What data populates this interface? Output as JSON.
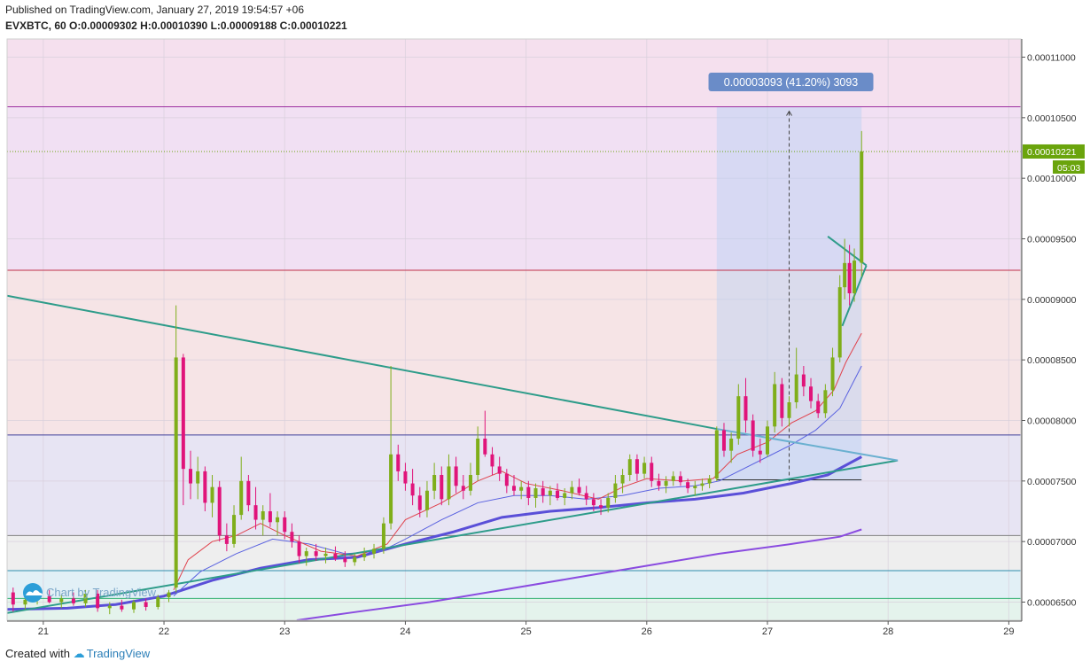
{
  "header": {
    "published": "Published on TradingView.com, January 27, 2019 19:54:57 +06",
    "symbol": "EVXBTC, 60",
    "o_label": "O:",
    "o_value": "0.00009302",
    "h_label": "H:",
    "h_value": "0.00010390",
    "l_label": "L:",
    "l_value": "0.00009188",
    "c_label": "C:",
    "c_value": "0.00010221"
  },
  "footer": {
    "created": "Created with",
    "brand": "TradingView"
  },
  "watermark": "Chart by TradingView",
  "colors": {
    "up": "#7fae1a",
    "down": "#e0147a",
    "ema_fast": "#e0424c",
    "ema_slow": "#5a62e0",
    "ma_thick": "#5a4fd8",
    "ma_long": "#8a4be0",
    "trend": "#2e9c8a",
    "price_tag": "#6aa40c",
    "measure": "#6a8cc8"
  },
  "chart_data": {
    "type": "candlestick",
    "x_ticks": [
      "21",
      "22",
      "23",
      "24",
      "25",
      "26",
      "27",
      "28",
      "29"
    ],
    "y_ticks": [
      "0.00006500",
      "0.00007000",
      "0.00007500",
      "0.00008000",
      "0.00008500",
      "0.00009000",
      "0.00009500",
      "0.00010000",
      "0.00010500",
      "0.00011000"
    ],
    "y_range": [
      6.35e-05,
      0.0001115
    ],
    "x_range": [
      20.7,
      29.1
    ],
    "last_price": "0.00010221",
    "countdown": "05:03",
    "measure_label": "0.00003093 (41.20%) 3093",
    "measure_from": [
      26.58,
      7.5e-05
    ],
    "measure_to": [
      27.78,
      0.0001059
    ],
    "horizontal_levels": [
      {
        "price": 0.0001059,
        "color": "#9c2fa0"
      },
      {
        "price": 9.24e-05,
        "color": "#c0304a"
      },
      {
        "price": 7.88e-05,
        "color": "#40409a"
      },
      {
        "price": 7.05e-05,
        "color": "#808080"
      },
      {
        "price": 6.76e-05,
        "color": "#2f8fb0"
      },
      {
        "price": 6.53e-05,
        "color": "#2fb070"
      }
    ],
    "zones": [
      {
        "from": 0.0001059,
        "to": 0.0001115,
        "color": "#f5e0ee"
      },
      {
        "from": 9.24e-05,
        "to": 0.0001059,
        "color": "#f1e0f3"
      },
      {
        "from": 7.88e-05,
        "to": 9.24e-05,
        "color": "#f6e4e6"
      },
      {
        "from": 7.05e-05,
        "to": 7.88e-05,
        "color": "#e7e4f3"
      },
      {
        "from": 6.76e-05,
        "to": 7.05e-05,
        "color": "#eeeeee"
      },
      {
        "from": 6.53e-05,
        "to": 6.76e-05,
        "color": "#e2f0f6"
      },
      {
        "from": 6.35e-05,
        "to": 6.53e-05,
        "color": "#e4f3ec"
      }
    ],
    "trendlines": [
      {
        "from": [
          20.7,
          9.03e-05
        ],
        "to": [
          26.58,
          7.93e-05
        ]
      },
      {
        "from": [
          20.7,
          6.41e-05
        ],
        "to": [
          28.08,
          7.67e-05
        ]
      },
      {
        "from": [
          26.58,
          7.93e-05
        ],
        "to": [
          28.08,
          7.67e-05
        ],
        "color": "#6ab0d0"
      },
      {
        "from": [
          27.5,
          9.52e-05
        ],
        "to": [
          27.82,
          9.28e-05
        ]
      },
      {
        "from": [
          27.82,
          9.28e-05
        ],
        "to": [
          27.62,
          8.78e-05
        ]
      }
    ],
    "support_line": {
      "from": [
        26.58,
        7.51e-05
      ],
      "to": [
        27.78,
        7.51e-05
      ]
    },
    "candles": [
      {
        "t": 20.75,
        "o": 6.58,
        "h": 6.62,
        "l": 6.42,
        "c": 6.48
      },
      {
        "t": 20.85,
        "o": 6.48,
        "h": 6.56,
        "l": 6.44,
        "c": 6.52
      },
      {
        "t": 20.95,
        "o": 6.52,
        "h": 6.6,
        "l": 6.48,
        "c": 6.55
      },
      {
        "t": 21.05,
        "o": 6.55,
        "h": 6.6,
        "l": 6.49,
        "c": 6.5
      },
      {
        "t": 21.15,
        "o": 6.5,
        "h": 6.56,
        "l": 6.45,
        "c": 6.53
      },
      {
        "t": 21.25,
        "o": 6.53,
        "h": 6.58,
        "l": 6.47,
        "c": 6.49
      },
      {
        "t": 21.35,
        "o": 6.49,
        "h": 6.6,
        "l": 6.46,
        "c": 6.57
      },
      {
        "t": 21.45,
        "o": 6.57,
        "h": 6.6,
        "l": 6.42,
        "c": 6.45
      },
      {
        "t": 21.55,
        "o": 6.45,
        "h": 6.5,
        "l": 6.4,
        "c": 6.47
      },
      {
        "t": 21.65,
        "o": 6.47,
        "h": 6.52,
        "l": 6.42,
        "c": 6.44
      },
      {
        "t": 21.75,
        "o": 6.44,
        "h": 6.52,
        "l": 6.41,
        "c": 6.5
      },
      {
        "t": 21.85,
        "o": 6.5,
        "h": 6.53,
        "l": 6.43,
        "c": 6.46
      },
      {
        "t": 21.95,
        "o": 6.46,
        "h": 6.56,
        "l": 6.44,
        "c": 6.54
      },
      {
        "t": 22.04,
        "o": 6.54,
        "h": 6.6,
        "l": 6.5,
        "c": 6.58
      },
      {
        "t": 22.1,
        "o": 6.62,
        "h": 8.95,
        "l": 6.58,
        "c": 8.52
      },
      {
        "t": 22.16,
        "o": 8.52,
        "h": 8.55,
        "l": 7.3,
        "c": 7.6
      },
      {
        "t": 22.22,
        "o": 7.6,
        "h": 7.75,
        "l": 7.35,
        "c": 7.48
      },
      {
        "t": 22.28,
        "o": 7.48,
        "h": 7.7,
        "l": 7.35,
        "c": 7.58
      },
      {
        "t": 22.34,
        "o": 7.58,
        "h": 7.62,
        "l": 7.25,
        "c": 7.32
      },
      {
        "t": 22.4,
        "o": 7.32,
        "h": 7.55,
        "l": 7.2,
        "c": 7.45
      },
      {
        "t": 22.46,
        "o": 7.45,
        "h": 7.5,
        "l": 7.0,
        "c": 7.05
      },
      {
        "t": 22.52,
        "o": 7.05,
        "h": 7.15,
        "l": 6.92,
        "c": 6.98
      },
      {
        "t": 22.58,
        "o": 6.98,
        "h": 7.3,
        "l": 6.95,
        "c": 7.22
      },
      {
        "t": 22.64,
        "o": 7.22,
        "h": 7.7,
        "l": 7.18,
        "c": 7.5
      },
      {
        "t": 22.7,
        "o": 7.5,
        "h": 7.55,
        "l": 7.25,
        "c": 7.3
      },
      {
        "t": 22.76,
        "o": 7.3,
        "h": 7.45,
        "l": 7.1,
        "c": 7.18
      },
      {
        "t": 22.82,
        "o": 7.18,
        "h": 7.3,
        "l": 7.05,
        "c": 7.25
      },
      {
        "t": 22.88,
        "o": 7.25,
        "h": 7.4,
        "l": 7.12,
        "c": 7.16
      },
      {
        "t": 22.94,
        "o": 7.16,
        "h": 7.25,
        "l": 7.05,
        "c": 7.2
      },
      {
        "t": 23.0,
        "o": 7.2,
        "h": 7.25,
        "l": 7.02,
        "c": 7.08
      },
      {
        "t": 23.06,
        "o": 7.08,
        "h": 7.15,
        "l": 6.95,
        "c": 7.0
      },
      {
        "t": 23.12,
        "o": 7.0,
        "h": 7.05,
        "l": 6.82,
        "c": 6.88
      },
      {
        "t": 23.18,
        "o": 6.88,
        "h": 6.95,
        "l": 6.8,
        "c": 6.92
      },
      {
        "t": 23.26,
        "o": 6.92,
        "h": 6.98,
        "l": 6.84,
        "c": 6.88
      },
      {
        "t": 23.34,
        "o": 6.88,
        "h": 6.95,
        "l": 6.82,
        "c": 6.9
      },
      {
        "t": 23.42,
        "o": 6.9,
        "h": 6.96,
        "l": 6.84,
        "c": 6.86
      },
      {
        "t": 23.5,
        "o": 6.86,
        "h": 6.92,
        "l": 6.79,
        "c": 6.83
      },
      {
        "t": 23.58,
        "o": 6.83,
        "h": 6.9,
        "l": 6.8,
        "c": 6.87
      },
      {
        "t": 23.66,
        "o": 6.87,
        "h": 6.95,
        "l": 6.84,
        "c": 6.9
      },
      {
        "t": 23.74,
        "o": 6.9,
        "h": 6.98,
        "l": 6.86,
        "c": 6.94
      },
      {
        "t": 23.82,
        "o": 6.94,
        "h": 7.2,
        "l": 6.9,
        "c": 7.15
      },
      {
        "t": 23.88,
        "o": 7.15,
        "h": 8.45,
        "l": 7.1,
        "c": 7.72
      },
      {
        "t": 23.94,
        "o": 7.72,
        "h": 7.8,
        "l": 7.5,
        "c": 7.58
      },
      {
        "t": 24.0,
        "o": 7.58,
        "h": 7.65,
        "l": 7.42,
        "c": 7.48
      },
      {
        "t": 24.06,
        "o": 7.48,
        "h": 7.6,
        "l": 7.3,
        "c": 7.38
      },
      {
        "t": 24.12,
        "o": 7.38,
        "h": 7.45,
        "l": 7.2,
        "c": 7.26
      },
      {
        "t": 24.18,
        "o": 7.26,
        "h": 7.5,
        "l": 7.2,
        "c": 7.42
      },
      {
        "t": 24.24,
        "o": 7.42,
        "h": 7.65,
        "l": 7.35,
        "c": 7.55
      },
      {
        "t": 24.3,
        "o": 7.55,
        "h": 7.62,
        "l": 7.3,
        "c": 7.35
      },
      {
        "t": 24.36,
        "o": 7.35,
        "h": 7.72,
        "l": 7.3,
        "c": 7.62
      },
      {
        "t": 24.42,
        "o": 7.62,
        "h": 7.7,
        "l": 7.4,
        "c": 7.46
      },
      {
        "t": 24.48,
        "o": 7.46,
        "h": 7.55,
        "l": 7.35,
        "c": 7.42
      },
      {
        "t": 24.54,
        "o": 7.42,
        "h": 7.65,
        "l": 7.38,
        "c": 7.55
      },
      {
        "t": 24.6,
        "o": 7.55,
        "h": 7.95,
        "l": 7.5,
        "c": 7.85
      },
      {
        "t": 24.66,
        "o": 7.85,
        "h": 8.08,
        "l": 7.7,
        "c": 7.72
      },
      {
        "t": 24.72,
        "o": 7.72,
        "h": 7.78,
        "l": 7.55,
        "c": 7.62
      },
      {
        "t": 24.78,
        "o": 7.62,
        "h": 7.7,
        "l": 7.5,
        "c": 7.56
      },
      {
        "t": 24.84,
        "o": 7.56,
        "h": 7.6,
        "l": 7.4,
        "c": 7.46
      },
      {
        "t": 24.9,
        "o": 7.46,
        "h": 7.55,
        "l": 7.38,
        "c": 7.42
      },
      {
        "t": 24.96,
        "o": 7.42,
        "h": 7.5,
        "l": 7.35,
        "c": 7.45
      },
      {
        "t": 25.02,
        "o": 7.45,
        "h": 7.5,
        "l": 7.3,
        "c": 7.36
      },
      {
        "t": 25.08,
        "o": 7.36,
        "h": 7.48,
        "l": 7.28,
        "c": 7.44
      },
      {
        "t": 25.14,
        "o": 7.44,
        "h": 7.5,
        "l": 7.32,
        "c": 7.38
      },
      {
        "t": 25.2,
        "o": 7.38,
        "h": 7.46,
        "l": 7.3,
        "c": 7.42
      },
      {
        "t": 25.26,
        "o": 7.42,
        "h": 7.48,
        "l": 7.34,
        "c": 7.36
      },
      {
        "t": 25.32,
        "o": 7.36,
        "h": 7.44,
        "l": 7.3,
        "c": 7.4
      },
      {
        "t": 25.38,
        "o": 7.4,
        "h": 7.5,
        "l": 7.35,
        "c": 7.45
      },
      {
        "t": 25.44,
        "o": 7.45,
        "h": 7.52,
        "l": 7.38,
        "c": 7.4
      },
      {
        "t": 25.5,
        "o": 7.4,
        "h": 7.46,
        "l": 7.3,
        "c": 7.35
      },
      {
        "t": 25.56,
        "o": 7.35,
        "h": 7.4,
        "l": 7.25,
        "c": 7.3
      },
      {
        "t": 25.62,
        "o": 7.3,
        "h": 7.35,
        "l": 7.22,
        "c": 7.28
      },
      {
        "t": 25.68,
        "o": 7.28,
        "h": 7.4,
        "l": 7.24,
        "c": 7.36
      },
      {
        "t": 25.74,
        "o": 7.36,
        "h": 7.55,
        "l": 7.32,
        "c": 7.48
      },
      {
        "t": 25.8,
        "o": 7.48,
        "h": 7.6,
        "l": 7.4,
        "c": 7.55
      },
      {
        "t": 25.86,
        "o": 7.55,
        "h": 7.72,
        "l": 7.5,
        "c": 7.68
      },
      {
        "t": 25.92,
        "o": 7.68,
        "h": 7.72,
        "l": 7.5,
        "c": 7.56
      },
      {
        "t": 25.98,
        "o": 7.56,
        "h": 7.7,
        "l": 7.52,
        "c": 7.65
      },
      {
        "t": 26.04,
        "o": 7.65,
        "h": 7.7,
        "l": 7.45,
        "c": 7.5
      },
      {
        "t": 26.1,
        "o": 7.5,
        "h": 7.56,
        "l": 7.42,
        "c": 7.46
      },
      {
        "t": 26.16,
        "o": 7.46,
        "h": 7.54,
        "l": 7.4,
        "c": 7.5
      },
      {
        "t": 26.22,
        "o": 7.5,
        "h": 7.58,
        "l": 7.46,
        "c": 7.54
      },
      {
        "t": 26.28,
        "o": 7.54,
        "h": 7.58,
        "l": 7.46,
        "c": 7.49
      },
      {
        "t": 26.34,
        "o": 7.49,
        "h": 7.52,
        "l": 7.4,
        "c": 7.44
      },
      {
        "t": 26.4,
        "o": 7.44,
        "h": 7.5,
        "l": 7.38,
        "c": 7.46
      },
      {
        "t": 26.46,
        "o": 7.46,
        "h": 7.52,
        "l": 7.42,
        "c": 7.48
      },
      {
        "t": 26.52,
        "o": 7.48,
        "h": 7.55,
        "l": 7.44,
        "c": 7.52
      },
      {
        "t": 26.58,
        "o": 7.52,
        "h": 7.95,
        "l": 7.5,
        "c": 7.92
      },
      {
        "t": 26.64,
        "o": 7.92,
        "h": 7.98,
        "l": 7.7,
        "c": 7.75
      },
      {
        "t": 26.7,
        "o": 7.75,
        "h": 7.9,
        "l": 7.65,
        "c": 7.85
      },
      {
        "t": 26.76,
        "o": 7.85,
        "h": 8.3,
        "l": 7.8,
        "c": 8.2
      },
      {
        "t": 26.82,
        "o": 8.2,
        "h": 8.35,
        "l": 7.9,
        "c": 8.0
      },
      {
        "t": 26.88,
        "o": 8.0,
        "h": 8.05,
        "l": 7.7,
        "c": 7.75
      },
      {
        "t": 26.94,
        "o": 7.75,
        "h": 7.85,
        "l": 7.65,
        "c": 7.72
      },
      {
        "t": 27.0,
        "o": 7.72,
        "h": 8.0,
        "l": 7.7,
        "c": 7.95
      },
      {
        "t": 27.06,
        "o": 7.95,
        "h": 8.4,
        "l": 7.9,
        "c": 8.3
      },
      {
        "t": 27.12,
        "o": 8.3,
        "h": 8.35,
        "l": 7.95,
        "c": 8.02
      },
      {
        "t": 27.18,
        "o": 8.02,
        "h": 8.2,
        "l": 7.95,
        "c": 8.15
      },
      {
        "t": 27.24,
        "o": 8.15,
        "h": 8.6,
        "l": 8.1,
        "c": 8.38
      },
      {
        "t": 27.3,
        "o": 8.38,
        "h": 8.45,
        "l": 8.2,
        "c": 8.28
      },
      {
        "t": 27.36,
        "o": 8.28,
        "h": 8.35,
        "l": 8.1,
        "c": 8.16
      },
      {
        "t": 27.42,
        "o": 8.16,
        "h": 8.22,
        "l": 8.02,
        "c": 8.06
      },
      {
        "t": 27.48,
        "o": 8.06,
        "h": 8.3,
        "l": 8.02,
        "c": 8.25
      },
      {
        "t": 27.54,
        "o": 8.25,
        "h": 8.6,
        "l": 8.2,
        "c": 8.52
      },
      {
        "t": 27.6,
        "o": 8.52,
        "h": 9.2,
        "l": 8.48,
        "c": 9.1
      },
      {
        "t": 27.64,
        "o": 9.1,
        "h": 9.5,
        "l": 9.0,
        "c": 9.3
      },
      {
        "t": 27.68,
        "o": 9.3,
        "h": 9.45,
        "l": 8.95,
        "c": 9.05
      },
      {
        "t": 27.72,
        "o": 9.05,
        "h": 9.42,
        "l": 8.98,
        "c": 9.32
      },
      {
        "t": 27.78,
        "o": 9.302,
        "h": 10.39,
        "l": 9.188,
        "c": 10.221
      }
    ],
    "ema_fast": [
      [
        22.08,
        6.6
      ],
      [
        22.2,
        6.85
      ],
      [
        22.4,
        7.0
      ],
      [
        22.6,
        7.05
      ],
      [
        22.8,
        7.15
      ],
      [
        23.0,
        7.05
      ],
      [
        23.3,
        6.92
      ],
      [
        23.6,
        6.88
      ],
      [
        23.85,
        6.98
      ],
      [
        24.0,
        7.18
      ],
      [
        24.3,
        7.32
      ],
      [
        24.6,
        7.5
      ],
      [
        24.8,
        7.58
      ],
      [
        25.0,
        7.48
      ],
      [
        25.3,
        7.42
      ],
      [
        25.6,
        7.35
      ],
      [
        25.8,
        7.45
      ],
      [
        26.0,
        7.52
      ],
      [
        26.3,
        7.5
      ],
      [
        26.55,
        7.52
      ],
      [
        26.75,
        7.72
      ],
      [
        27.0,
        7.82
      ],
      [
        27.2,
        7.98
      ],
      [
        27.4,
        8.08
      ],
      [
        27.55,
        8.25
      ],
      [
        27.65,
        8.48
      ],
      [
        27.78,
        8.72
      ]
    ],
    "ema_slow": [
      [
        22.08,
        6.55
      ],
      [
        22.3,
        6.75
      ],
      [
        22.6,
        6.9
      ],
      [
        22.9,
        7.02
      ],
      [
        23.2,
        6.98
      ],
      [
        23.5,
        6.9
      ],
      [
        23.8,
        6.92
      ],
      [
        24.0,
        7.02
      ],
      [
        24.3,
        7.18
      ],
      [
        24.6,
        7.32
      ],
      [
        24.9,
        7.38
      ],
      [
        25.2,
        7.38
      ],
      [
        25.5,
        7.35
      ],
      [
        25.8,
        7.38
      ],
      [
        26.1,
        7.44
      ],
      [
        26.4,
        7.46
      ],
      [
        26.6,
        7.5
      ],
      [
        26.8,
        7.6
      ],
      [
        27.0,
        7.7
      ],
      [
        27.2,
        7.8
      ],
      [
        27.4,
        7.92
      ],
      [
        27.6,
        8.1
      ],
      [
        27.78,
        8.45
      ]
    ],
    "ma_thick": [
      [
        20.7,
        6.44
      ],
      [
        21.2,
        6.45
      ],
      [
        21.6,
        6.48
      ],
      [
        22.0,
        6.55
      ],
      [
        22.4,
        6.68
      ],
      [
        22.8,
        6.78
      ],
      [
        23.2,
        6.85
      ],
      [
        23.6,
        6.87
      ],
      [
        24.0,
        6.98
      ],
      [
        24.4,
        7.08
      ],
      [
        24.8,
        7.2
      ],
      [
        25.2,
        7.25
      ],
      [
        25.6,
        7.28
      ],
      [
        26.0,
        7.32
      ],
      [
        26.4,
        7.35
      ],
      [
        26.8,
        7.4
      ],
      [
        27.2,
        7.48
      ],
      [
        27.5,
        7.55
      ],
      [
        27.78,
        7.7
      ]
    ],
    "ma_long": [
      [
        23.1,
        6.35
      ],
      [
        23.6,
        6.42
      ],
      [
        24.2,
        6.5
      ],
      [
        24.8,
        6.6
      ],
      [
        25.4,
        6.7
      ],
      [
        26.0,
        6.8
      ],
      [
        26.6,
        6.9
      ],
      [
        27.2,
        6.98
      ],
      [
        27.6,
        7.04
      ],
      [
        27.78,
        7.1
      ]
    ]
  }
}
